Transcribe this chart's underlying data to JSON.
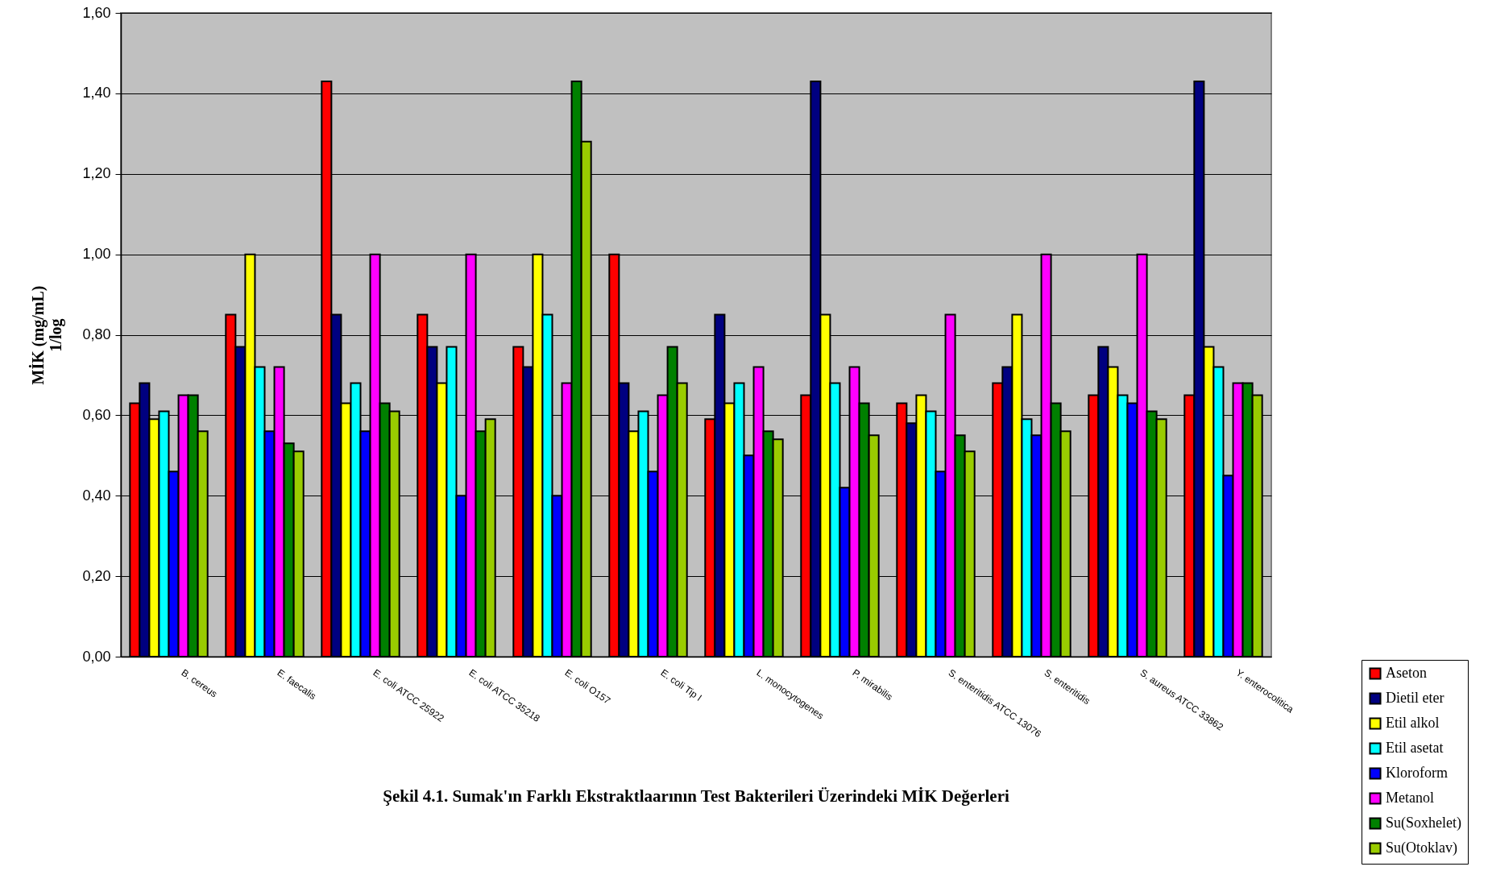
{
  "chart_data": {
    "type": "bar",
    "title": "Şekil 4.1. Sumak'ın Farklı Ekstraktlaarının Test Bakterileri Üzerindeki MİK Değerleri",
    "ylabel": "MİK (mg/mL)\n1/log",
    "categories": [
      "B. cereus",
      "E. faecalis",
      "E. coli ATCC 25922",
      "E. coli ATCC 35218",
      "E. coli O157",
      "E. coli Tip I",
      "L. monocytogenes",
      "P. mirabilis",
      "S. enteritidis ATCC 13076",
      "S. enteritidis",
      "S. aureus ATCC 33862",
      "Y. enterocolitica"
    ],
    "series": [
      {
        "name": "Aseton",
        "color": "#ff0000",
        "values": [
          0.63,
          0.85,
          1.43,
          0.85,
          0.77,
          1.0,
          0.59,
          0.65,
          0.63,
          0.68,
          0.65,
          0.65
        ]
      },
      {
        "name": "Dietil eter",
        "color": "#000080",
        "values": [
          0.68,
          0.77,
          0.85,
          0.77,
          0.72,
          0.68,
          0.85,
          1.43,
          0.58,
          0.72,
          0.77,
          1.43
        ]
      },
      {
        "name": "Etil alkol",
        "color": "#ffff00",
        "values": [
          0.59,
          1.0,
          0.63,
          0.68,
          1.0,
          0.56,
          0.63,
          0.85,
          0.65,
          0.85,
          0.72,
          0.77
        ]
      },
      {
        "name": "Etil asetat",
        "color": "#00ffff",
        "values": [
          0.61,
          0.72,
          0.68,
          0.77,
          0.85,
          0.61,
          0.68,
          0.68,
          0.61,
          0.59,
          0.65,
          0.72
        ]
      },
      {
        "name": "Kloroform",
        "color": "#0000ff",
        "values": [
          0.46,
          0.56,
          0.56,
          0.4,
          0.4,
          0.46,
          0.5,
          0.42,
          0.46,
          0.55,
          0.63,
          0.45
        ]
      },
      {
        "name": "Metanol",
        "color": "#ff00ff",
        "values": [
          0.65,
          0.72,
          1.0,
          1.0,
          0.68,
          0.65,
          0.72,
          0.72,
          0.85,
          1.0,
          1.0,
          0.68
        ]
      },
      {
        "name": "Su(Soxhelet)",
        "color": "#008000",
        "values": [
          0.65,
          0.53,
          0.63,
          0.56,
          1.43,
          0.77,
          0.56,
          0.63,
          0.55,
          0.63,
          0.61,
          0.68
        ]
      },
      {
        "name": "Su(Otoklav)",
        "color": "#99cc00",
        "values": [
          0.56,
          0.51,
          0.61,
          0.59,
          1.28,
          0.68,
          0.54,
          0.55,
          0.51,
          0.56,
          0.59,
          0.65
        ]
      }
    ],
    "ylim": [
      0,
      1.6
    ],
    "yticks": [
      {
        "value": 0,
        "label": "0,00"
      },
      {
        "value": 0.2,
        "label": "0,20"
      },
      {
        "value": 0.4,
        "label": "0,40"
      },
      {
        "value": 0.6,
        "label": "0,60"
      },
      {
        "value": 0.8,
        "label": "0,80"
      },
      {
        "value": 1.0,
        "label": "1,00"
      },
      {
        "value": 1.2,
        "label": "1,20"
      },
      {
        "value": 1.4,
        "label": "1,40"
      },
      {
        "value": 1.6,
        "label": "1,60"
      }
    ],
    "grid": "y",
    "legend": "bottom right"
  }
}
